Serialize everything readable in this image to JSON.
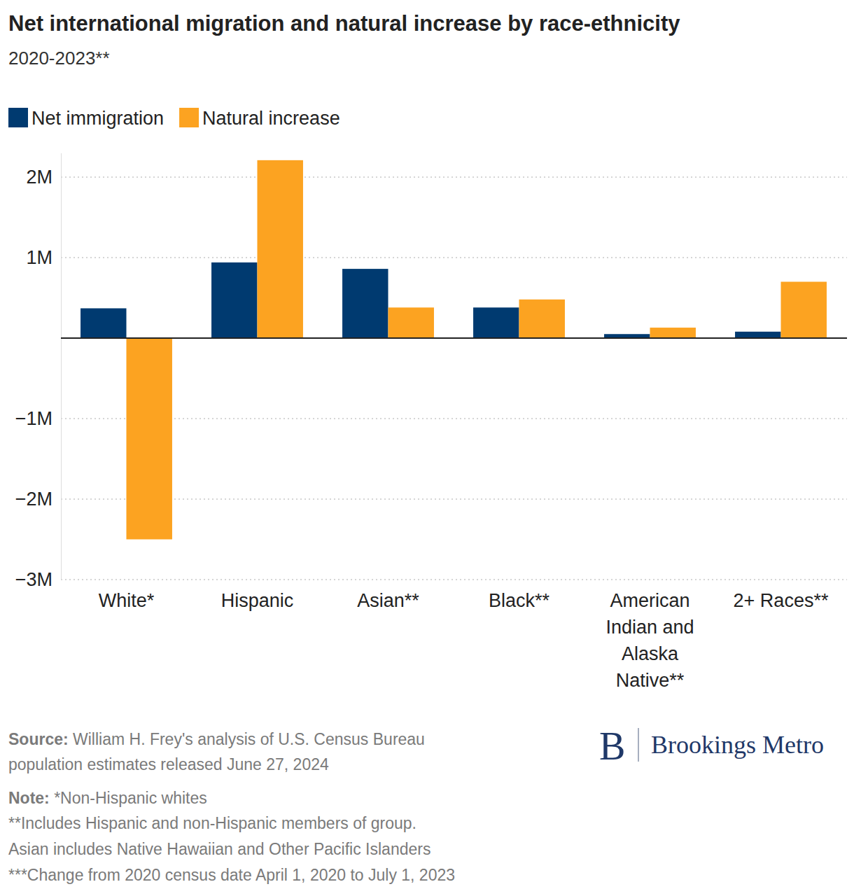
{
  "chart_data": {
    "type": "bar",
    "title": "Net international migration and natural increase by race-ethnicity",
    "subtitle": "2020-2023**",
    "categories": [
      "White*",
      "Hispanic",
      "Asian**",
      "Black**",
      "American Indian and Alaska Native**",
      "2+ Races**"
    ],
    "series": [
      {
        "name": "Net immigration",
        "color": "#003a70",
        "values": [
          370000,
          940000,
          860000,
          380000,
          50000,
          80000
        ]
      },
      {
        "name": "Natural increase",
        "color": "#fca321",
        "values": [
          -2500000,
          2210000,
          380000,
          480000,
          130000,
          700000
        ]
      }
    ],
    "ylim": [
      -3000000,
      2300000
    ],
    "yticks": [
      {
        "value": 2000000,
        "label": "2M"
      },
      {
        "value": 1000000,
        "label": "1M"
      },
      {
        "value": -1000000,
        "label": "−1M"
      },
      {
        "value": -2000000,
        "label": "−2M"
      },
      {
        "value": -3000000,
        "label": "−3M"
      }
    ],
    "grid": true,
    "legend": "top-left",
    "source_label": "Source:",
    "source_lines": [
      "William H. Frey's analysis of U.S. Census Bureau",
      "population estimates released June 27, 2024"
    ],
    "note_label": "Note:",
    "notes": [
      "*Non-Hispanic whites",
      "**Includes Hispanic and non-Hispanic members of group.",
      "Asian includes Native Hawaiian and Other Pacific Islanders",
      "***Change from 2020 census date April 1, 2020 to July 1, 2023"
    ],
    "logo": "B",
    "logo_text": "Brookings Metro"
  }
}
